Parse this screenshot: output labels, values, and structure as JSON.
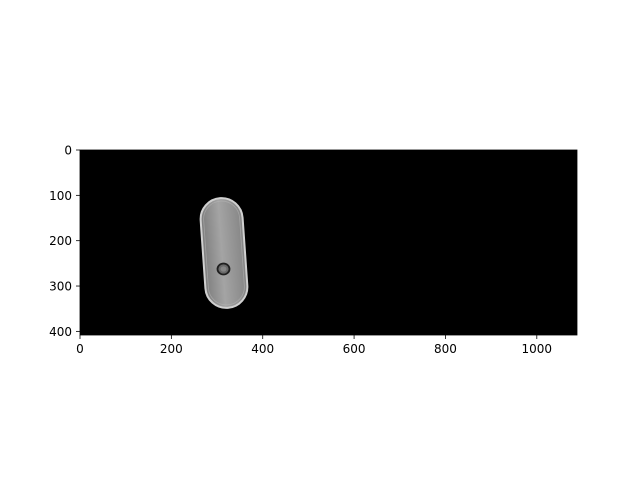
{
  "image_panel": {
    "background_color": "#000000",
    "object_colors": {
      "outline": "#d6d6d6",
      "fill": "#9a9a9a",
      "spot_edge": "#222222",
      "spot_fill": "#6e6e6e"
    },
    "data_extent": {
      "x": [
        0,
        1088
      ],
      "y": [
        0,
        408
      ]
    },
    "object_center": [
      310,
      225
    ],
    "spot_center": [
      313,
      261
    ]
  },
  "axes": {
    "x_ticks": [
      {
        "value": 0,
        "label": "0"
      },
      {
        "value": 200,
        "label": "200"
      },
      {
        "value": 400,
        "label": "400"
      },
      {
        "value": 600,
        "label": "600"
      },
      {
        "value": 800,
        "label": "800"
      },
      {
        "value": 1000,
        "label": "1000"
      }
    ],
    "y_ticks": [
      {
        "value": 0,
        "label": "0"
      },
      {
        "value": 100,
        "label": "100"
      },
      {
        "value": 200,
        "label": "200"
      },
      {
        "value": 300,
        "label": "300"
      },
      {
        "value": 400,
        "label": "400"
      }
    ]
  }
}
